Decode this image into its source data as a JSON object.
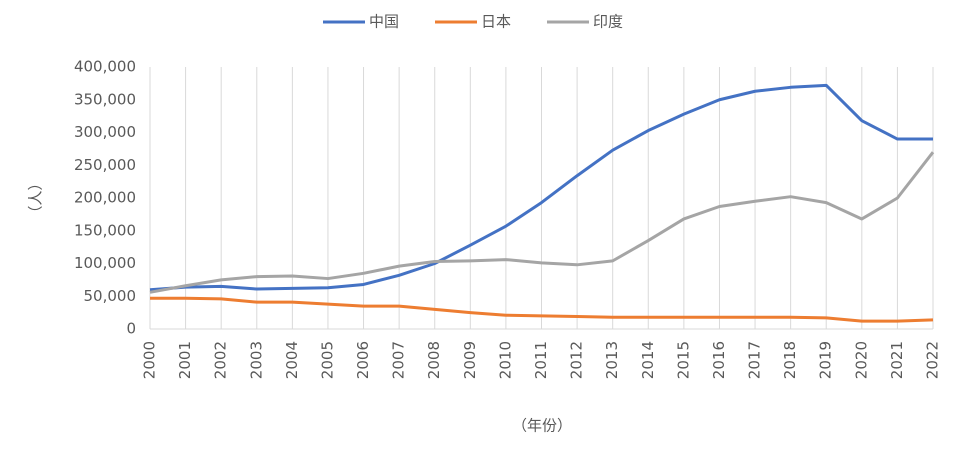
{
  "chart_data": {
    "type": "line",
    "y_label": "（人）",
    "x_label": "（年份）",
    "categories": [
      "2000",
      "2001",
      "2002",
      "2003",
      "2004",
      "2005",
      "2006",
      "2007",
      "2008",
      "2009",
      "2010",
      "2011",
      "2012",
      "2013",
      "2014",
      "2015",
      "2016",
      "2017",
      "2018",
      "2019",
      "2020",
      "2021",
      "2022"
    ],
    "series": [
      {
        "name": "中国",
        "color": "#4472c4",
        "values": [
          60000,
          64000,
          65000,
          61000,
          62000,
          63000,
          68000,
          82000,
          100000,
          128000,
          157000,
          193000,
          234000,
          273000,
          303000,
          328000,
          350000,
          363000,
          369000,
          372000,
          318000,
          290000,
          290000
        ]
      },
      {
        "name": "日本",
        "color": "#ed7d31",
        "values": [
          47000,
          47000,
          46000,
          41000,
          41000,
          38000,
          35000,
          35000,
          30000,
          25000,
          21000,
          20000,
          19000,
          18000,
          18000,
          18000,
          18000,
          18000,
          18000,
          17000,
          12000,
          12000,
          14000
        ]
      },
      {
        "name": "印度",
        "color": "#a5a5a5",
        "values": [
          56000,
          66000,
          75000,
          80000,
          81000,
          77000,
          85000,
          96000,
          103000,
          104000,
          106000,
          101000,
          98000,
          104000,
          135000,
          168000,
          187000,
          195000,
          202000,
          193000,
          168000,
          200000,
          270000
        ]
      }
    ],
    "ylim": [
      0,
      400000
    ],
    "yticks": [
      0,
      {
        "value": 50000,
        "label": "50,000"
      },
      {
        "value": 100000,
        "label": "100,000"
      },
      {
        "value": 150000,
        "label": "150,000"
      },
      {
        "value": 200000,
        "label": "200,000"
      },
      {
        "value": 250000,
        "label": "250,000"
      },
      {
        "value": 300000,
        "label": "300,000"
      },
      {
        "value": 350000,
        "label": "350,000"
      },
      {
        "value": 400000,
        "label": "400,000"
      }
    ],
    "grid": "x",
    "legend": "top"
  }
}
